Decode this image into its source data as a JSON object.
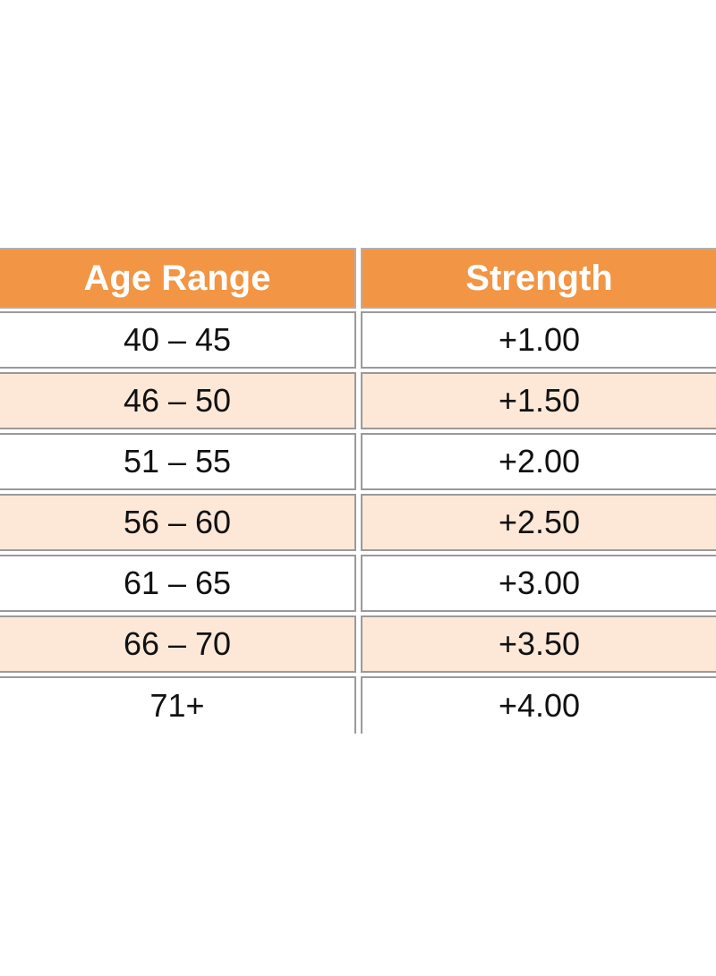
{
  "table": {
    "header": [
      "Age Range",
      "Strength"
    ],
    "rows": [
      [
        "40 – 45",
        "+1.00"
      ],
      [
        "46 – 50",
        "+1.50"
      ],
      [
        "51 – 55",
        "+2.00"
      ],
      [
        "56 – 60",
        "+2.50"
      ],
      [
        "61 – 65",
        "+3.00"
      ],
      [
        "66 – 70",
        "+3.50"
      ],
      [
        "71+",
        "+4.00"
      ]
    ]
  }
}
